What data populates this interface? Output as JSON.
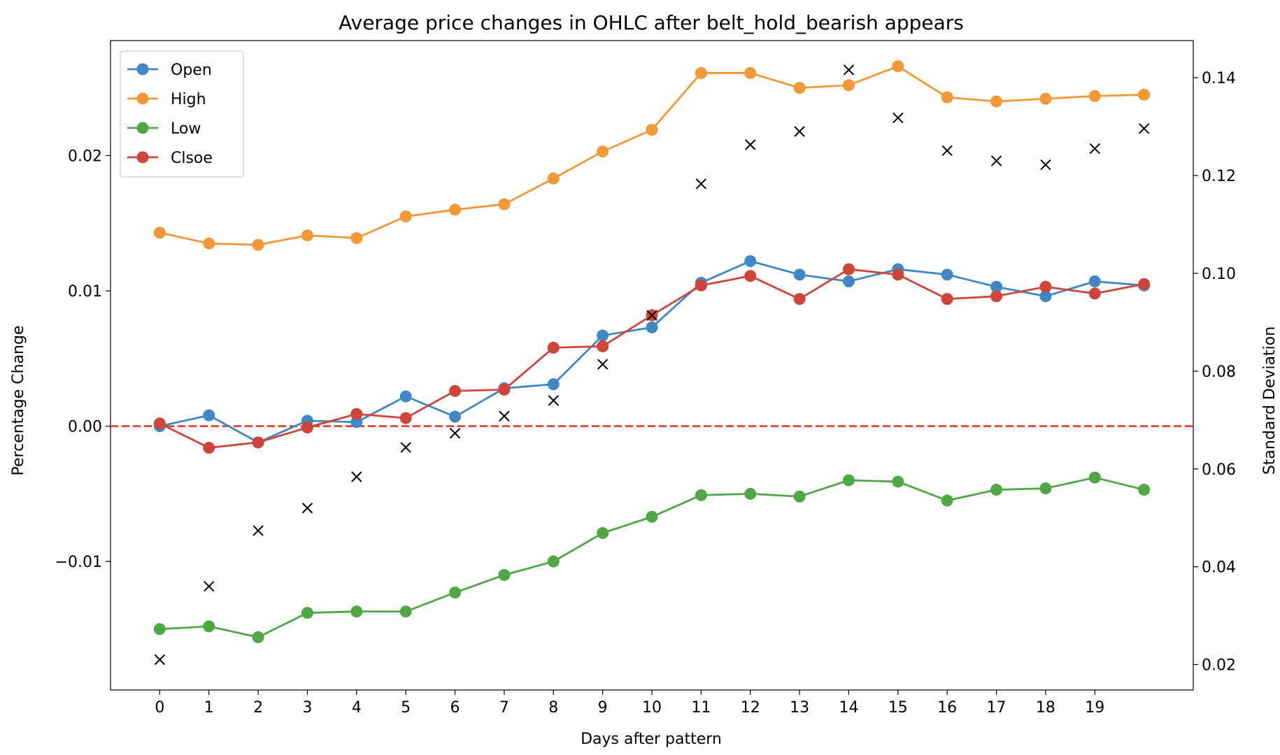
{
  "chart_data": {
    "type": "line",
    "title": "Average price changes in OHLC after belt_hold_bearish appears",
    "xlabel": "Days after pattern",
    "ylabel": "Percentage Change",
    "y2label": "Standard Deviation",
    "x": [
      0,
      1,
      2,
      3,
      4,
      5,
      6,
      7,
      8,
      9,
      10,
      11,
      12,
      13,
      14,
      15,
      16,
      17,
      18,
      19,
      20
    ],
    "x_tick_labels": [
      "0",
      "1",
      "2",
      "3",
      "4",
      "5",
      "6",
      "7",
      "8",
      "9",
      "10",
      "11",
      "12",
      "13",
      "14",
      "15",
      "16",
      "17",
      "18",
      "19"
    ],
    "xlim": [
      -1,
      21
    ],
    "ylim": [
      -0.0195,
      0.0285
    ],
    "y_ticks": [
      -0.01,
      0.0,
      0.01,
      0.02
    ],
    "y_tick_labels": [
      "−0.01",
      "0.00",
      "0.01",
      "0.02"
    ],
    "y2lim": [
      0.0148,
      0.1476
    ],
    "y2_ticks": [
      0.02,
      0.04,
      0.06,
      0.08,
      0.1,
      0.12,
      0.14
    ],
    "y2_tick_labels": [
      "0.02",
      "0.04",
      "0.06",
      "0.08",
      "0.10",
      "0.12",
      "0.14"
    ],
    "legend_position": "top-left",
    "grid": false,
    "reference_line": {
      "y": 0.0,
      "color": "#e8412a",
      "style": "dashed"
    },
    "series": [
      {
        "name": "Open",
        "color": "#3f88c5",
        "values": [
          0.0,
          0.0008,
          -0.0012,
          0.0004,
          0.0003,
          0.0022,
          0.0007,
          0.0028,
          0.0031,
          0.0067,
          0.0073,
          0.0106,
          0.0122,
          0.0112,
          0.0107,
          0.0116,
          0.0112,
          0.0103,
          0.0096,
          0.0107,
          0.0104
        ]
      },
      {
        "name": "High",
        "color": "#f29837",
        "values": [
          0.0143,
          0.0135,
          0.0134,
          0.0141,
          0.0139,
          0.0155,
          0.016,
          0.0164,
          0.0183,
          0.0203,
          0.0219,
          0.0261,
          0.0261,
          0.025,
          0.0252,
          0.0266,
          0.0243,
          0.024,
          0.0242,
          0.0244,
          0.0245
        ]
      },
      {
        "name": "Low",
        "color": "#4fa845",
        "values": [
          -0.015,
          -0.0148,
          -0.0156,
          -0.0138,
          -0.0137,
          -0.0137,
          -0.0123,
          -0.011,
          -0.01,
          -0.0079,
          -0.0067,
          -0.0051,
          -0.005,
          -0.0052,
          -0.004,
          -0.0041,
          -0.0055,
          -0.0047,
          -0.0046,
          -0.0038,
          -0.0047
        ]
      },
      {
        "name": "Clsoe",
        "color": "#d0453a",
        "values": [
          0.0002,
          -0.0016,
          -0.0012,
          -0.0001,
          0.0009,
          0.0006,
          0.0026,
          0.0027,
          0.0058,
          0.0059,
          0.0082,
          0.0104,
          0.0111,
          0.0094,
          0.0116,
          0.0112,
          0.0094,
          0.0096,
          0.0103,
          0.0098,
          0.0105
        ]
      }
    ],
    "std_series": {
      "marker": "x",
      "color": "#000000",
      "values": [
        0.021,
        0.036,
        0.0474,
        0.052,
        0.0584,
        0.0644,
        0.0673,
        0.0708,
        0.074,
        0.0814,
        0.0914,
        0.1183,
        0.1263,
        0.129,
        0.1416,
        0.1318,
        0.1251,
        0.123,
        0.1222,
        0.1255,
        0.1296
      ]
    }
  }
}
